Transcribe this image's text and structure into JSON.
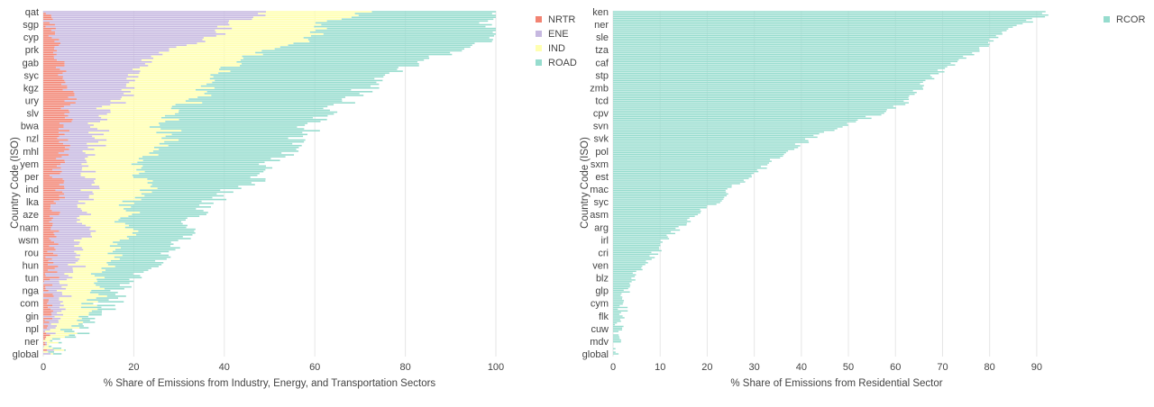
{
  "chart_data": [
    {
      "type": "bar",
      "orientation": "horizontal",
      "stacked": true,
      "xlabel": "% Share of Emissions from Industry, Energy, and Transportation Sectors",
      "ylabel": "Country Code (ISO)",
      "xlim": [
        0,
        100
      ],
      "xticks": [
        0,
        20,
        40,
        60,
        80,
        100
      ],
      "grid": true,
      "legend_position": "right",
      "categories": [
        "qat",
        "sgp",
        "cyp",
        "prk",
        "gab",
        "syc",
        "kgz",
        "ury",
        "slv",
        "bwa",
        "nzl",
        "mhl",
        "yem",
        "per",
        "ind",
        "lka",
        "aze",
        "nam",
        "wsm",
        "rou",
        "hun",
        "tun",
        "nga",
        "com",
        "gin",
        "npl",
        "ner",
        "global"
      ],
      "total_rows": 185,
      "series": [
        {
          "name": "NRTR",
          "color": "#f28372",
          "values": [
            0.5,
            1,
            2,
            3,
            4,
            4,
            5,
            6,
            5,
            5,
            4,
            5,
            3,
            3,
            4,
            3,
            3,
            2,
            2,
            2,
            2,
            2,
            1,
            1,
            1,
            1,
            0.5,
            0.3
          ]
        },
        {
          "name": "ENE",
          "color": "#c6b8e0",
          "values": [
            49,
            40,
            35,
            26,
            18,
            16,
            14,
            10,
            8,
            7,
            8,
            5,
            6,
            6,
            7,
            6,
            6,
            8,
            6,
            6,
            5,
            4,
            3,
            2,
            2,
            1.5,
            0.8,
            0.2
          ]
        },
        {
          "name": "IND",
          "color": "#ffffb0",
          "values": [
            22,
            20,
            22,
            22,
            20,
            18,
            17,
            16,
            15,
            14,
            16,
            14,
            12,
            12,
            12,
            11,
            10,
            9,
            9,
            8,
            8,
            7,
            8,
            6,
            6,
            4,
            2,
            0.5
          ]
        },
        {
          "name": "ROAD",
          "color": "#96dcce",
          "values": [
            28.5,
            39,
            40,
            43,
            40,
            38,
            36,
            33,
            35,
            33,
            29,
            31,
            29,
            26,
            19,
            17,
            15,
            14,
            12,
            12,
            11,
            9,
            5,
            4,
            2,
            2,
            1,
            1
          ]
        }
      ]
    },
    {
      "type": "bar",
      "orientation": "horizontal",
      "xlabel": "% Share of Emissions from Residential Sector",
      "ylabel": "Country Code (ISO)",
      "xlim": [
        0,
        95
      ],
      "xticks": [
        0,
        10,
        20,
        30,
        40,
        50,
        60,
        70,
        80,
        90
      ],
      "grid": true,
      "legend_position": "right",
      "categories": [
        "ken",
        "ner",
        "sle",
        "tza",
        "caf",
        "stp",
        "zmb",
        "tcd",
        "cpv",
        "svn",
        "svk",
        "pol",
        "sxm",
        "est",
        "mac",
        "syc",
        "asm",
        "arg",
        "irl",
        "cri",
        "ven",
        "blz",
        "glp",
        "cym",
        "flk",
        "cuw",
        "mdv",
        "global"
      ],
      "total_rows": 200,
      "series": [
        {
          "name": "RCOR",
          "color": "#96dcce",
          "values": [
            93,
            87,
            81,
            78,
            73,
            68,
            65,
            63,
            57,
            49,
            42,
            37,
            33,
            29,
            25,
            22,
            18,
            14,
            11,
            9,
            6,
            4,
            3,
            2.4,
            1.8,
            1.2,
            0.6,
            0.2
          ]
        }
      ]
    }
  ]
}
